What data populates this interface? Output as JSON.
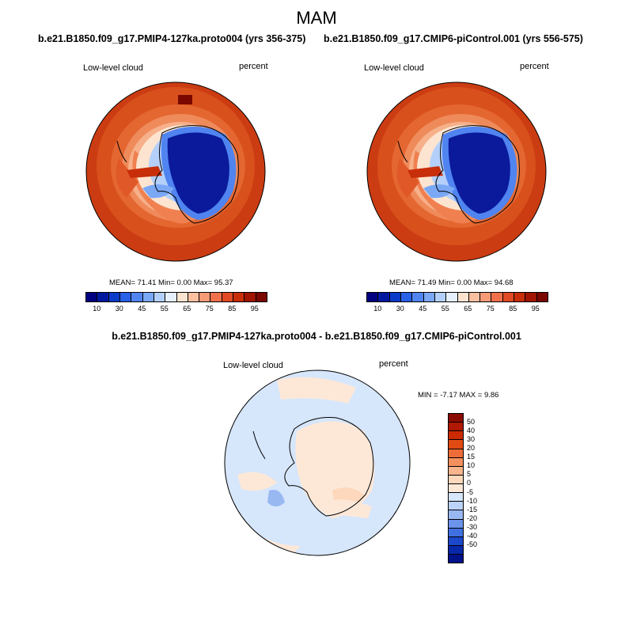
{
  "title": "MAM",
  "panels": [
    {
      "case_title": "b.e21.B1850.f09_g17.PMIP4-127ka.proto004 (yrs 356-375)",
      "variable": "Low-level cloud",
      "units": "percent",
      "stats": "MEAN= 71.41  Min=   0.00  Max=  95.37"
    },
    {
      "case_title": "b.e21.B1850.f09_g17.CMIP6-piControl.001 (yrs 556-575)",
      "variable": "Low-level cloud",
      "units": "percent",
      "stats": "MEAN= 71.49  Min=   0.00  Max=  94.68"
    }
  ],
  "abs_colorbar": {
    "colors": [
      "#000080",
      "#0019a0",
      "#0a3cc8",
      "#2860e8",
      "#5084f0",
      "#7aa8f5",
      "#b4d0fa",
      "#e6f0fc",
      "#fde4d0",
      "#fbc0a0",
      "#f79a76",
      "#f0704c",
      "#e04a24",
      "#c82e0a",
      "#a01400",
      "#7a0800"
    ],
    "tick_labels": [
      "10",
      "30",
      "45",
      "55",
      "65",
      "75",
      "85",
      "95"
    ]
  },
  "diff": {
    "title": "b.e21.B1850.f09_g17.PMIP4-127ka.proto004 - b.e21.B1850.f09_g17.CMIP6-piControl.001",
    "variable": "Low-level cloud",
    "units": "percent",
    "minmax": "MIN =  -7.17 MAX =   9.86",
    "colors": [
      "#8a0c00",
      "#b01800",
      "#cc2a00",
      "#e24a14",
      "#ee6c38",
      "#f4905e",
      "#f8b48c",
      "#fdd8bc",
      "#fde8d8",
      "#d6e6fb",
      "#bcd2f8",
      "#98b8f2",
      "#6c94ec",
      "#4070e0",
      "#1c48cc",
      "#0828aa",
      "#00118a"
    ],
    "tick_labels": [
      "50",
      "40",
      "30",
      "20",
      "15",
      "10",
      "5",
      "0",
      "-5",
      "-10",
      "-15",
      "-20",
      "-30",
      "-40",
      "-50"
    ]
  }
}
